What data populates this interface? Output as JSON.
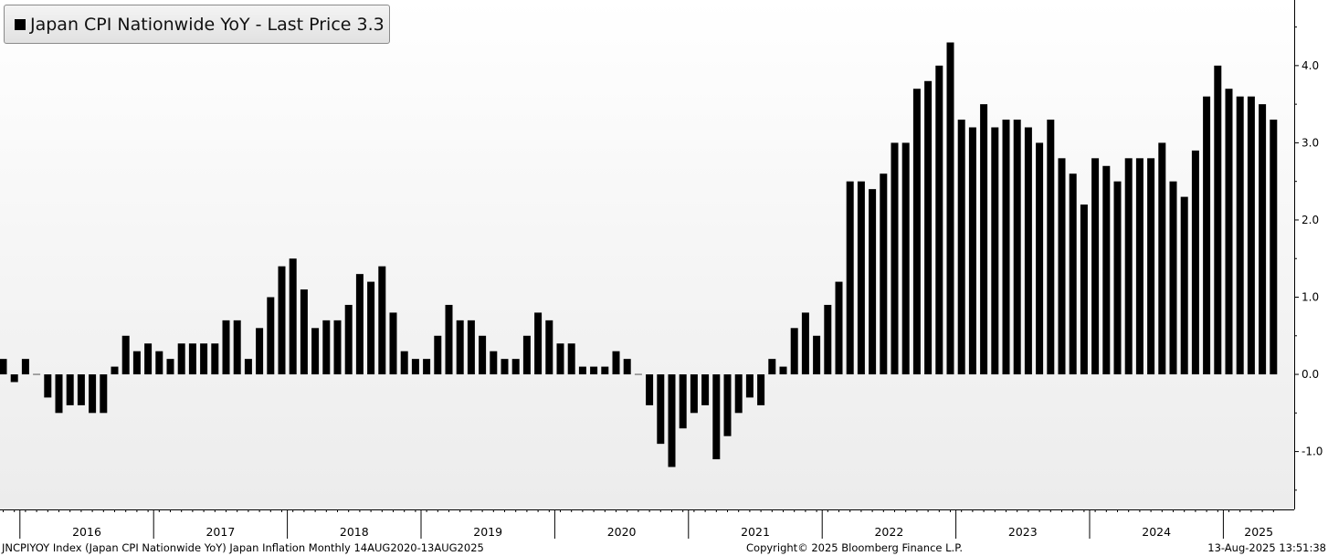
{
  "legend": {
    "label": "Japan CPI Nationwide YoY - Last Price 3.3"
  },
  "footer": {
    "left": "JNCPIYOY Index (Japan CPI Nationwide YoY) Japan Inflation  Monthly 14AUG2020-13AUG2025",
    "center": "Copyright© 2025 Bloomberg Finance L.P.",
    "right": "13-Aug-2025 13:51:38"
  },
  "chart_data": {
    "type": "bar",
    "series": [
      {
        "name": "Japan CPI Nationwide YoY",
        "color": "#000000",
        "start": "2015-11",
        "frequency": "monthly",
        "values": [
          0.2,
          -0.1,
          0.2,
          0.0,
          -0.3,
          -0.5,
          -0.4,
          -0.4,
          -0.5,
          -0.5,
          0.1,
          0.5,
          0.3,
          0.4,
          0.3,
          0.2,
          0.4,
          0.4,
          0.4,
          0.4,
          0.7,
          0.7,
          0.2,
          0.6,
          1.0,
          1.4,
          1.5,
          1.1,
          0.6,
          0.7,
          0.7,
          0.9,
          1.3,
          1.2,
          1.4,
          0.8,
          0.3,
          0.2,
          0.2,
          0.5,
          0.9,
          0.7,
          0.7,
          0.5,
          0.3,
          0.2,
          0.2,
          0.5,
          0.8,
          0.7,
          0.4,
          0.4,
          0.1,
          0.1,
          0.1,
          0.3,
          0.2,
          0.0,
          -0.4,
          -0.9,
          -1.2,
          -0.7,
          -0.5,
          -0.4,
          -1.1,
          -0.8,
          -0.5,
          -0.3,
          -0.4,
          0.2,
          0.1,
          0.6,
          0.8,
          0.5,
          0.9,
          1.2,
          2.5,
          2.5,
          2.4,
          2.6,
          3.0,
          3.0,
          3.7,
          3.8,
          4.0,
          4.3,
          3.3,
          3.2,
          3.5,
          3.2,
          3.3,
          3.3,
          3.2,
          3.0,
          3.3,
          2.8,
          2.6,
          2.2,
          2.8,
          2.7,
          2.5,
          2.8,
          2.8,
          2.8,
          3.0,
          2.5,
          2.3,
          2.9,
          3.6,
          4.0,
          3.7,
          3.6,
          3.6,
          3.5,
          3.3
        ]
      }
    ],
    "x_tick_labels": [
      "2016",
      "2017",
      "2018",
      "2019",
      "2020",
      "2021",
      "2022",
      "2023",
      "2024",
      "2025"
    ],
    "y_tick_labels": [
      "-1.0",
      "0.0",
      "1.0",
      "2.0",
      "3.0",
      "4.0"
    ],
    "y_ticks": [
      -1,
      0,
      1,
      2,
      3,
      4
    ],
    "ylim": [
      -1.75,
      4.85
    ],
    "y_axis_position": "right",
    "grid": false,
    "legend_position": "top-left",
    "last_price": 3.3
  }
}
